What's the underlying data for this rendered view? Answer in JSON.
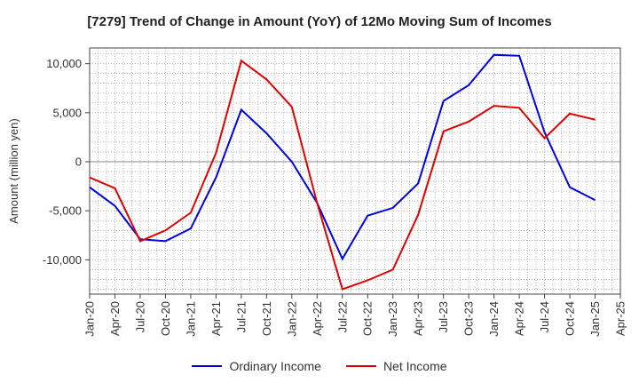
{
  "chart_data": {
    "type": "line",
    "title": "[7279]  Trend of Change in Amount (YoY) of 12Mo Moving Sum of Incomes",
    "ylabel": "Amount (million yen)",
    "xlabel": "",
    "ylim": [
      -13500,
      11600
    ],
    "yticks": [
      10000,
      5000,
      0,
      -5000,
      -10000
    ],
    "ytick_labels": [
      "10,000",
      "5,000",
      "0",
      "-5,000",
      "-10,000"
    ],
    "categories": [
      "Jan-20",
      "Apr-20",
      "Jul-20",
      "Oct-20",
      "Jan-21",
      "Apr-21",
      "Jul-21",
      "Oct-21",
      "Jan-22",
      "Apr-22",
      "Jul-22",
      "Oct-22",
      "Jan-23",
      "Apr-23",
      "Jul-23",
      "Oct-23",
      "Jan-24",
      "Apr-24",
      "Jul-24",
      "Oct-24",
      "Jan-25",
      "Apr-25"
    ],
    "grid": true,
    "legend_position": "bottom",
    "series": [
      {
        "name": "Ordinary Income",
        "color": "#0000dd",
        "values": [
          -2600,
          -4500,
          -7900,
          -8100,
          -6800,
          -1600,
          5300,
          2900,
          0,
          -4200,
          -9900,
          -5500,
          -4700,
          -2200,
          6200,
          7800,
          10900,
          10800,
          3000,
          -2600,
          -3900,
          null
        ]
      },
      {
        "name": "Net Income",
        "color": "#dd0000",
        "values": [
          -1600,
          -2700,
          -8100,
          -7000,
          -5200,
          900,
          10300,
          8400,
          5600,
          -4200,
          -13000,
          -12100,
          -11000,
          -5400,
          3100,
          4100,
          5700,
          5500,
          2400,
          4900,
          4300,
          null
        ]
      }
    ]
  }
}
